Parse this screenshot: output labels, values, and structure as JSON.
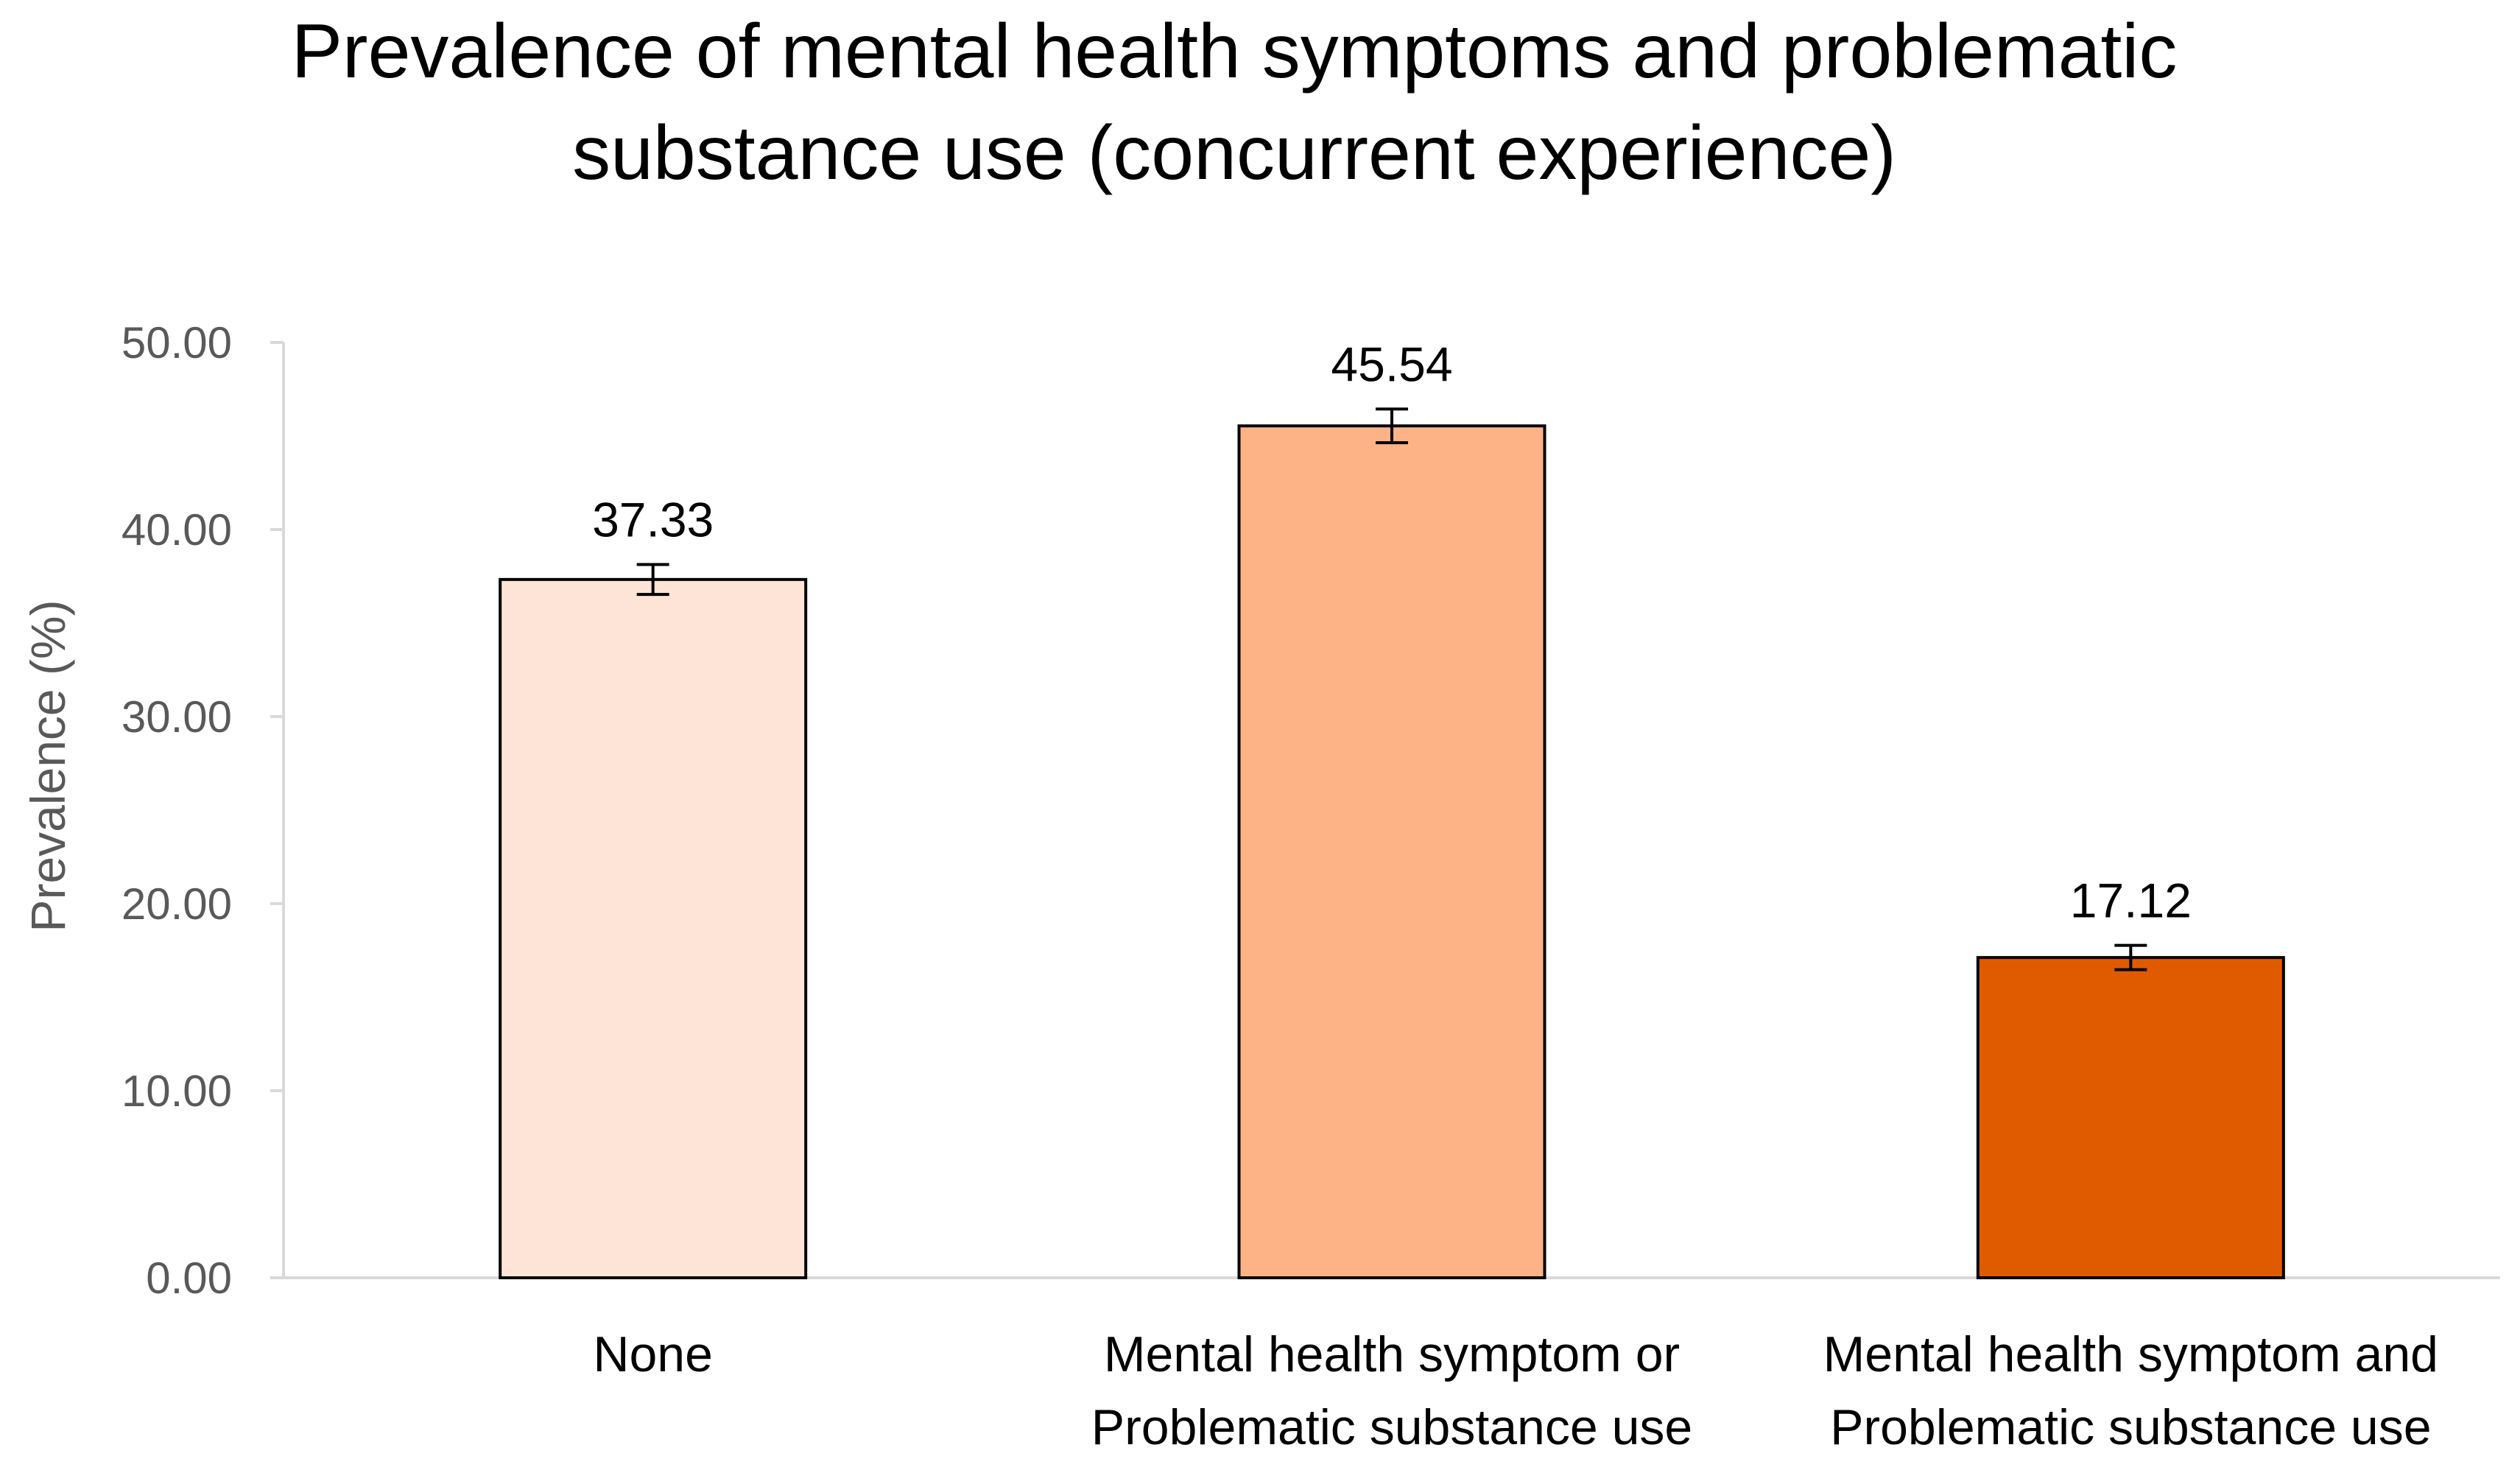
{
  "chart_data": {
    "type": "bar",
    "title": "Prevalence of mental health symptoms and problematic substance use (concurrent experience)",
    "title_lines": [
      "Prevalence of mental health symptoms and problematic",
      "substance use (concurrent experience)"
    ],
    "xlabel": "",
    "ylabel": "Prevalence (%)",
    "ylim": [
      0,
      50
    ],
    "yticks": [
      "0.00",
      "10.00",
      "20.00",
      "30.00",
      "40.00",
      "50.00"
    ],
    "grid": false,
    "legend": "none",
    "categories": [
      "None",
      "Mental health symptom or Problematic substance use",
      "Mental health symptom and Problematic substance use"
    ],
    "category_lines": [
      [
        "None"
      ],
      [
        "Mental health symptom or",
        "Problematic substance use"
      ],
      [
        "Mental health symptom and",
        "Problematic substance use"
      ]
    ],
    "values": [
      37.33,
      45.54,
      17.12
    ],
    "value_labels": [
      "37.33",
      "45.54",
      "17.12"
    ],
    "error": [
      0.8,
      0.9,
      0.65
    ],
    "colors": [
      "#FDE4D6",
      "#FDB385",
      "#E05B00"
    ],
    "axis_color": "#D9D9D9",
    "bar_border_color": "#000000"
  }
}
